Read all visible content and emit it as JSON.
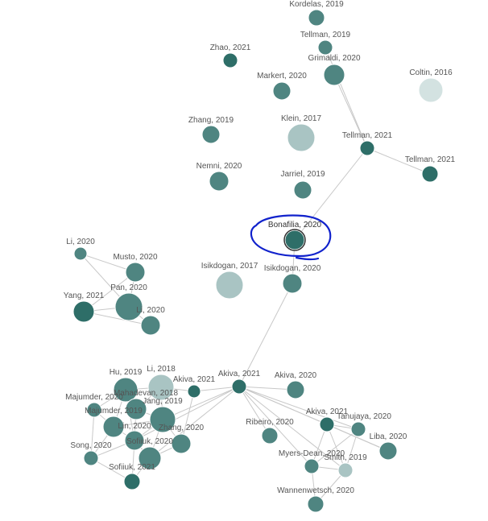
{
  "graph": {
    "selected": "bonafilia-2020",
    "nodes": [
      {
        "id": "kordelas-2019",
        "label": "Kordelas, 2019",
        "shade": "mid"
      },
      {
        "id": "tellman-2019",
        "label": "Tellman, 2019",
        "shade": "mid"
      },
      {
        "id": "zhao-2021",
        "label": "Zhao, 2021",
        "shade": "dark"
      },
      {
        "id": "grimaldi-2020",
        "label": "Grimaldi, 2020",
        "shade": "mid"
      },
      {
        "id": "markert-2020",
        "label": "Markert, 2020",
        "shade": "mid"
      },
      {
        "id": "coltin-2016",
        "label": "Coltin, 2016",
        "shade": "pale"
      },
      {
        "id": "zhang-2019a",
        "label": "Zhang, 2019",
        "shade": "mid"
      },
      {
        "id": "klein-2017",
        "label": "Klein, 2017",
        "shade": "light"
      },
      {
        "id": "tellman-2021a",
        "label": "Tellman, 2021",
        "shade": "dark"
      },
      {
        "id": "tellman-2021b",
        "label": "Tellman, 2021",
        "shade": "dark"
      },
      {
        "id": "nemni-2020",
        "label": "Nemni, 2020",
        "shade": "mid"
      },
      {
        "id": "jarriel-2019",
        "label": "Jarriel, 2019",
        "shade": "mid"
      },
      {
        "id": "bonafilia-2020",
        "label": "Bonafilia, 2020",
        "shade": "dark"
      },
      {
        "id": "li-2020a",
        "label": "Li, 2020",
        "shade": "mid"
      },
      {
        "id": "musto-2020",
        "label": "Musto, 2020",
        "shade": "mid"
      },
      {
        "id": "isikdogan-2017",
        "label": "Isikdogan, 2017",
        "shade": "light"
      },
      {
        "id": "isikdogan-2020",
        "label": "Isikdogan, 2020",
        "shade": "mid"
      },
      {
        "id": "yang-2021",
        "label": "Yang, 2021",
        "shade": "dark"
      },
      {
        "id": "pan-2020",
        "label": "Pan, 2020",
        "shade": "mid"
      },
      {
        "id": "li-2020b",
        "label": "Li, 2020",
        "shade": "mid"
      },
      {
        "id": "hu-2019",
        "label": "Hu, 2019",
        "shade": "mid"
      },
      {
        "id": "li-2018",
        "label": "Li, 2018",
        "shade": "light"
      },
      {
        "id": "akiva-2021a",
        "label": "Akiva, 2021",
        "shade": "dark"
      },
      {
        "id": "akiva-2021b",
        "label": "Akiva, 2021",
        "shade": "dark"
      },
      {
        "id": "akiva-2020",
        "label": "Akiva, 2020",
        "shade": "mid"
      },
      {
        "id": "majumder-2020",
        "label": "Majumder, 2020",
        "shade": "mid"
      },
      {
        "id": "mahadevan-2018",
        "label": "Mahadevan, 2018",
        "shade": "mid"
      },
      {
        "id": "jang-2019",
        "label": "Jang, 2019",
        "shade": "mid"
      },
      {
        "id": "majumder-2019",
        "label": "Majumder, 2019",
        "shade": "mid"
      },
      {
        "id": "akiva-2021c",
        "label": "Akiva, 2021",
        "shade": "dark"
      },
      {
        "id": "tanujaya-2020",
        "label": "Tanujaya, 2020",
        "shade": "mid"
      },
      {
        "id": "ribeiro-2020",
        "label": "Ribeiro, 2020",
        "shade": "mid"
      },
      {
        "id": "lin-2020",
        "label": "Lin, 2020",
        "shade": "mid"
      },
      {
        "id": "zhang-2020",
        "label": "Zhang, 2020",
        "shade": "mid"
      },
      {
        "id": "sofiiuk-2020",
        "label": "Sofiiuk, 2020",
        "shade": "mid"
      },
      {
        "id": "liba-2020",
        "label": "Liba, 2020",
        "shade": "mid"
      },
      {
        "id": "song-2020",
        "label": "Song, 2020",
        "shade": "mid"
      },
      {
        "id": "myers-dean-2020",
        "label": "Myers-Dean, 2020",
        "shade": "mid"
      },
      {
        "id": "smith-2019",
        "label": "Smith, 2019",
        "shade": "light"
      },
      {
        "id": "sofiiuk-2021",
        "label": "Sofiiuk, 2021",
        "shade": "dark"
      },
      {
        "id": "wannenwetsch-2020",
        "label": "Wannenwetsch, 2020",
        "shade": "mid"
      }
    ],
    "edges": [
      [
        "tellman-2019",
        "tellman-2021a"
      ],
      [
        "grimaldi-2020",
        "tellman-2021a"
      ],
      [
        "tellman-2021a",
        "tellman-2021b"
      ],
      [
        "tellman-2021a",
        "bonafilia-2020"
      ],
      [
        "bonafilia-2020",
        "isikdogan-2020"
      ],
      [
        "isikdogan-2020",
        "akiva-2021b"
      ],
      [
        "li-2020a",
        "musto-2020"
      ],
      [
        "li-2020a",
        "pan-2020"
      ],
      [
        "musto-2020",
        "yang-2021"
      ],
      [
        "musto-2020",
        "pan-2020"
      ],
      [
        "yang-2021",
        "pan-2020"
      ],
      [
        "yang-2021",
        "li-2020b"
      ],
      [
        "pan-2020",
        "li-2020b"
      ],
      [
        "hu-2019",
        "li-2018"
      ],
      [
        "hu-2019",
        "majumder-2020"
      ],
      [
        "hu-2019",
        "mahadevan-2018"
      ],
      [
        "hu-2019",
        "majumder-2019"
      ],
      [
        "hu-2019",
        "lin-2020"
      ],
      [
        "li-2018",
        "jang-2019"
      ],
      [
        "li-2018",
        "mahadevan-2018"
      ],
      [
        "li-2018",
        "akiva-2021a"
      ],
      [
        "majumder-2020",
        "majumder-2019"
      ],
      [
        "majumder-2020",
        "song-2020"
      ],
      [
        "majumder-2019",
        "lin-2020"
      ],
      [
        "majumder-2019",
        "jang-2019"
      ],
      [
        "majumder-2019",
        "song-2020"
      ],
      [
        "mahadevan-2018",
        "jang-2019"
      ],
      [
        "mahadevan-2018",
        "lin-2020"
      ],
      [
        "jang-2019",
        "lin-2020"
      ],
      [
        "jang-2019",
        "zhang-2020"
      ],
      [
        "jang-2019",
        "sofiiuk-2020"
      ],
      [
        "lin-2020",
        "sofiiuk-2020"
      ],
      [
        "lin-2020",
        "song-2020"
      ],
      [
        "lin-2020",
        "sofiiuk-2021"
      ],
      [
        "sofiiuk-2020",
        "sofiiuk-2021"
      ],
      [
        "sofiiuk-2020",
        "zhang-2020"
      ],
      [
        "song-2020",
        "sofiiuk-2021"
      ],
      [
        "akiva-2021a",
        "zhang-2020"
      ],
      [
        "akiva-2021b",
        "akiva-2021a"
      ],
      [
        "akiva-2021b",
        "jang-2019"
      ],
      [
        "akiva-2021b",
        "lin-2020"
      ],
      [
        "akiva-2021b",
        "sofiiuk-2020"
      ],
      [
        "akiva-2021b",
        "akiva-2020"
      ],
      [
        "akiva-2021b",
        "akiva-2021c"
      ],
      [
        "akiva-2021b",
        "tanujaya-2020"
      ],
      [
        "akiva-2021b",
        "ribeiro-2020"
      ],
      [
        "akiva-2021b",
        "myers-dean-2020"
      ],
      [
        "akiva-2021b",
        "smith-2019"
      ],
      [
        "akiva-2021b",
        "liba-2020"
      ],
      [
        "akiva-2021c",
        "tanujaya-2020"
      ],
      [
        "akiva-2021c",
        "myers-dean-2020"
      ],
      [
        "akiva-2021c",
        "smith-2019"
      ],
      [
        "akiva-2021c",
        "liba-2020"
      ],
      [
        "tanujaya-2020",
        "myers-dean-2020"
      ],
      [
        "tanujaya-2020",
        "smith-2019"
      ],
      [
        "myers-dean-2020",
        "smith-2019"
      ],
      [
        "myers-dean-2020",
        "wannenwetsch-2020"
      ],
      [
        "smith-2019",
        "wannenwetsch-2020"
      ]
    ]
  },
  "colors": {
    "dark": "#2e6e68",
    "mid": "#4f8581",
    "light": "#a9c4c3",
    "pale": "#d3e2e1",
    "edge": "#c8c8c8",
    "annotation": "#1122cc"
  }
}
